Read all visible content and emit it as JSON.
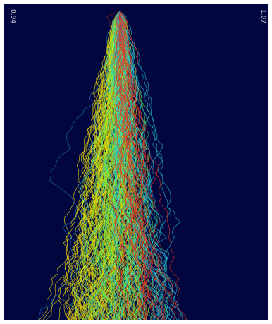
{
  "scale": {
    "left_label": "0.94",
    "right_label": "1.07"
  },
  "colors": {
    "background": "#02063f",
    "palette": [
      "#ffea00",
      "#f5d000",
      "#c8ec1a",
      "#8fe63a",
      "#3be86c",
      "#24e0a8",
      "#1fc4d8",
      "#1aa6e6",
      "#e83a1a",
      "#d0261a"
    ]
  },
  "visualization": {
    "description_free": true,
    "origin": "top-center",
    "lines": 220
  }
}
